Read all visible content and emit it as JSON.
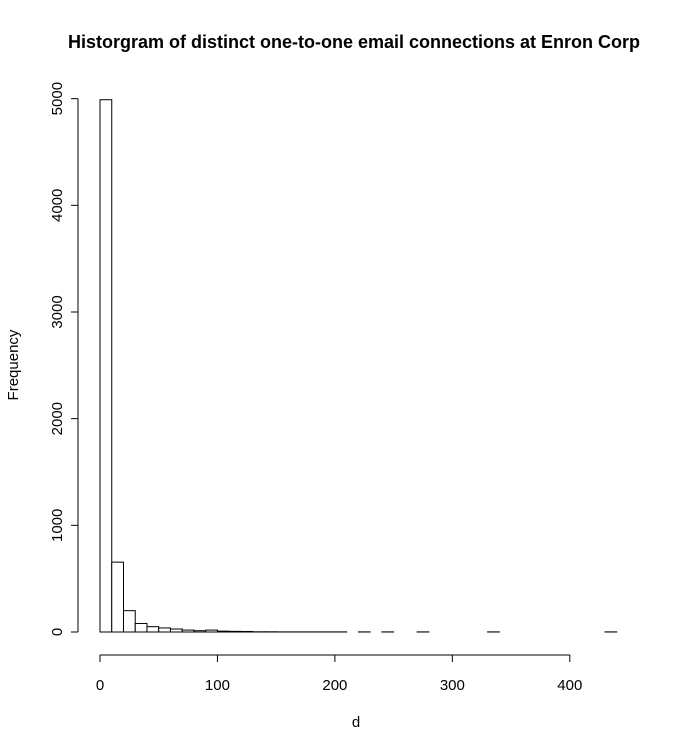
{
  "chart_data": {
    "type": "bar",
    "title": "Historgram of distinct one-to-one email connections at Enron Corp",
    "xlabel": "d",
    "ylabel": "Frequency",
    "bin_width": 10,
    "xlim": [
      0,
      440
    ],
    "ylim": [
      0,
      5000
    ],
    "x_ticks": [
      0,
      100,
      200,
      300,
      400
    ],
    "y_ticks": [
      0,
      1000,
      2000,
      3000,
      4000,
      5000
    ],
    "bins": [
      {
        "start": 0,
        "end": 10,
        "value": 4990
      },
      {
        "start": 10,
        "end": 20,
        "value": 655
      },
      {
        "start": 20,
        "end": 30,
        "value": 200
      },
      {
        "start": 30,
        "end": 40,
        "value": 80
      },
      {
        "start": 40,
        "end": 50,
        "value": 50
      },
      {
        "start": 50,
        "end": 60,
        "value": 38
      },
      {
        "start": 60,
        "end": 70,
        "value": 28
      },
      {
        "start": 70,
        "end": 80,
        "value": 18
      },
      {
        "start": 80,
        "end": 90,
        "value": 12
      },
      {
        "start": 90,
        "end": 100,
        "value": 18
      },
      {
        "start": 100,
        "end": 110,
        "value": 8
      },
      {
        "start": 110,
        "end": 120,
        "value": 6
      },
      {
        "start": 120,
        "end": 130,
        "value": 5
      },
      {
        "start": 130,
        "end": 140,
        "value": 2
      },
      {
        "start": 140,
        "end": 150,
        "value": 2
      },
      {
        "start": 150,
        "end": 160,
        "value": 1
      },
      {
        "start": 160,
        "end": 170,
        "value": 1
      },
      {
        "start": 170,
        "end": 180,
        "value": 1
      },
      {
        "start": 180,
        "end": 190,
        "value": 1
      },
      {
        "start": 190,
        "end": 200,
        "value": 1
      },
      {
        "start": 200,
        "end": 210,
        "value": 1
      },
      {
        "start": 210,
        "end": 220,
        "value": 0
      },
      {
        "start": 220,
        "end": 230,
        "value": 1
      },
      {
        "start": 230,
        "end": 240,
        "value": 0
      },
      {
        "start": 240,
        "end": 250,
        "value": 1
      },
      {
        "start": 250,
        "end": 260,
        "value": 0
      },
      {
        "start": 260,
        "end": 270,
        "value": 0
      },
      {
        "start": 270,
        "end": 280,
        "value": 1
      },
      {
        "start": 280,
        "end": 290,
        "value": 0
      },
      {
        "start": 290,
        "end": 300,
        "value": 0
      },
      {
        "start": 300,
        "end": 310,
        "value": 0
      },
      {
        "start": 310,
        "end": 320,
        "value": 0
      },
      {
        "start": 320,
        "end": 330,
        "value": 0
      },
      {
        "start": 330,
        "end": 340,
        "value": 1
      },
      {
        "start": 340,
        "end": 350,
        "value": 0
      },
      {
        "start": 350,
        "end": 360,
        "value": 0
      },
      {
        "start": 360,
        "end": 370,
        "value": 0
      },
      {
        "start": 370,
        "end": 380,
        "value": 0
      },
      {
        "start": 380,
        "end": 390,
        "value": 0
      },
      {
        "start": 390,
        "end": 400,
        "value": 0
      },
      {
        "start": 400,
        "end": 410,
        "value": 0
      },
      {
        "start": 410,
        "end": 420,
        "value": 0
      },
      {
        "start": 420,
        "end": 430,
        "value": 0
      },
      {
        "start": 430,
        "end": 440,
        "value": 1
      }
    ],
    "grid": false,
    "legend": "none"
  }
}
